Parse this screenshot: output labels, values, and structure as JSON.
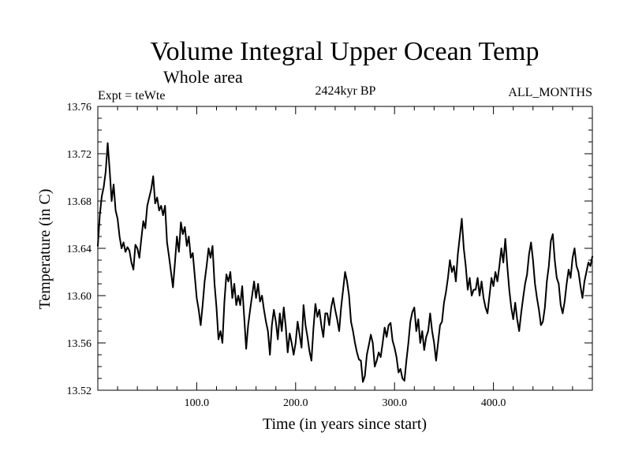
{
  "chart_data": {
    "type": "line",
    "title": "Volume Integral Upper Ocean Temp",
    "subtitle": "Whole area",
    "expt_label": "Expt = teWte",
    "period_label": "2424kyr BP",
    "months_label": "ALL_MONTHS",
    "xlabel": "Time (in years since start)",
    "ylabel": "Temperature (in C)",
    "xlim": [
      0,
      500
    ],
    "ylim": [
      13.52,
      13.76
    ],
    "xticks": [
      100,
      200,
      300,
      400
    ],
    "xtick_labels": [
      "100.0",
      "200.0",
      "300.0",
      "400.0"
    ],
    "yticks": [
      13.52,
      13.56,
      13.6,
      13.64,
      13.68,
      13.72,
      13.76
    ],
    "ytick_labels": [
      "13.52",
      "13.56",
      "13.60",
      "13.64",
      "13.68",
      "13.72",
      "13.76"
    ],
    "line_color": "#000000",
    "series": [
      {
        "name": "Temperature",
        "points": [
          [
            0,
            13.642
          ],
          [
            2,
            13.668
          ],
          [
            4,
            13.684
          ],
          [
            6,
            13.692
          ],
          [
            8,
            13.705
          ],
          [
            10,
            13.729
          ],
          [
            12,
            13.706
          ],
          [
            14,
            13.68
          ],
          [
            16,
            13.694
          ],
          [
            18,
            13.672
          ],
          [
            20,
            13.665
          ],
          [
            22,
            13.65
          ],
          [
            24,
            13.64
          ],
          [
            26,
            13.645
          ],
          [
            28,
            13.637
          ],
          [
            30,
            13.641
          ],
          [
            32,
            13.638
          ],
          [
            34,
            13.628
          ],
          [
            36,
            13.622
          ],
          [
            38,
            13.643
          ],
          [
            40,
            13.64
          ],
          [
            42,
            13.632
          ],
          [
            44,
            13.648
          ],
          [
            46,
            13.663
          ],
          [
            48,
            13.657
          ],
          [
            50,
            13.676
          ],
          [
            52,
            13.683
          ],
          [
            54,
            13.69
          ],
          [
            56,
            13.701
          ],
          [
            58,
            13.678
          ],
          [
            60,
            13.683
          ],
          [
            62,
            13.672
          ],
          [
            64,
            13.676
          ],
          [
            66,
            13.668
          ],
          [
            68,
            13.676
          ],
          [
            70,
            13.645
          ],
          [
            72,
            13.633
          ],
          [
            74,
            13.62
          ],
          [
            76,
            13.607
          ],
          [
            78,
            13.628
          ],
          [
            80,
            13.65
          ],
          [
            82,
            13.637
          ],
          [
            84,
            13.662
          ],
          [
            86,
            13.652
          ],
          [
            88,
            13.658
          ],
          [
            90,
            13.642
          ],
          [
            92,
            13.65
          ],
          [
            94,
            13.632
          ],
          [
            96,
            13.636
          ],
          [
            98,
            13.617
          ],
          [
            100,
            13.598
          ],
          [
            102,
            13.588
          ],
          [
            104,
            13.575
          ],
          [
            106,
            13.592
          ],
          [
            108,
            13.612
          ],
          [
            110,
            13.625
          ],
          [
            112,
            13.64
          ],
          [
            114,
            13.632
          ],
          [
            116,
            13.642
          ],
          [
            118,
            13.61
          ],
          [
            120,
            13.59
          ],
          [
            122,
            13.563
          ],
          [
            124,
            13.57
          ],
          [
            126,
            13.56
          ],
          [
            128,
            13.595
          ],
          [
            130,
            13.618
          ],
          [
            132,
            13.612
          ],
          [
            134,
            13.62
          ],
          [
            136,
            13.598
          ],
          [
            138,
            13.61
          ],
          [
            140,
            13.592
          ],
          [
            142,
            13.6
          ],
          [
            144,
            13.592
          ],
          [
            146,
            13.608
          ],
          [
            148,
            13.582
          ],
          [
            150,
            13.555
          ],
          [
            152,
            13.575
          ],
          [
            154,
            13.588
          ],
          [
            156,
            13.6
          ],
          [
            158,
            13.612
          ],
          [
            160,
            13.598
          ],
          [
            162,
            13.61
          ],
          [
            164,
            13.595
          ],
          [
            166,
            13.6
          ],
          [
            168,
            13.588
          ],
          [
            170,
            13.578
          ],
          [
            172,
            13.57
          ],
          [
            174,
            13.55
          ],
          [
            176,
            13.575
          ],
          [
            178,
            13.588
          ],
          [
            180,
            13.578
          ],
          [
            182,
            13.563
          ],
          [
            184,
            13.585
          ],
          [
            186,
            13.57
          ],
          [
            188,
            13.59
          ],
          [
            190,
            13.574
          ],
          [
            192,
            13.552
          ],
          [
            194,
            13.568
          ],
          [
            196,
            13.56
          ],
          [
            198,
            13.55
          ],
          [
            200,
            13.56
          ],
          [
            202,
            13.578
          ],
          [
            204,
            13.567
          ],
          [
            206,
            13.556
          ],
          [
            208,
            13.592
          ],
          [
            210,
            13.575
          ],
          [
            212,
            13.565
          ],
          [
            214,
            13.553
          ],
          [
            216,
            13.545
          ],
          [
            218,
            13.572
          ],
          [
            220,
            13.593
          ],
          [
            222,
            13.582
          ],
          [
            224,
            13.588
          ],
          [
            226,
            13.575
          ],
          [
            228,
            13.565
          ],
          [
            230,
            13.585
          ],
          [
            232,
            13.585
          ],
          [
            234,
            13.575
          ],
          [
            236,
            13.59
          ],
          [
            238,
            13.598
          ],
          [
            240,
            13.588
          ],
          [
            242,
            13.58
          ],
          [
            244,
            13.57
          ],
          [
            246,
            13.59
          ],
          [
            248,
            13.605
          ],
          [
            250,
            13.62
          ],
          [
            252,
            13.612
          ],
          [
            254,
            13.6
          ],
          [
            256,
            13.578
          ],
          [
            258,
            13.57
          ],
          [
            260,
            13.56
          ],
          [
            262,
            13.552
          ],
          [
            264,
            13.546
          ],
          [
            266,
            13.545
          ],
          [
            268,
            13.527
          ],
          [
            270,
            13.532
          ],
          [
            272,
            13.55
          ],
          [
            274,
            13.558
          ],
          [
            276,
            13.567
          ],
          [
            278,
            13.56
          ],
          [
            280,
            13.54
          ],
          [
            282,
            13.545
          ],
          [
            284,
            13.552
          ],
          [
            286,
            13.548
          ],
          [
            288,
            13.56
          ],
          [
            290,
            13.573
          ],
          [
            292,
            13.565
          ],
          [
            294,
            13.575
          ],
          [
            296,
            13.577
          ],
          [
            298,
            13.562
          ],
          [
            300,
            13.556
          ],
          [
            302,
            13.548
          ],
          [
            304,
            13.535
          ],
          [
            306,
            13.538
          ],
          [
            308,
            13.53
          ],
          [
            310,
            13.528
          ],
          [
            312,
            13.545
          ],
          [
            314,
            13.56
          ],
          [
            316,
            13.578
          ],
          [
            318,
            13.586
          ],
          [
            320,
            13.59
          ],
          [
            322,
            13.57
          ],
          [
            324,
            13.58
          ],
          [
            326,
            13.56
          ],
          [
            328,
            13.57
          ],
          [
            330,
            13.554
          ],
          [
            332,
            13.565
          ],
          [
            334,
            13.57
          ],
          [
            336,
            13.585
          ],
          [
            338,
            13.57
          ],
          [
            340,
            13.56
          ],
          [
            342,
            13.545
          ],
          [
            344,
            13.56
          ],
          [
            346,
            13.575
          ],
          [
            348,
            13.578
          ],
          [
            350,
            13.594
          ],
          [
            352,
            13.603
          ],
          [
            354,
            13.615
          ],
          [
            356,
            13.63
          ],
          [
            358,
            13.62
          ],
          [
            360,
            13.625
          ],
          [
            362,
            13.612
          ],
          [
            364,
            13.635
          ],
          [
            366,
            13.65
          ],
          [
            368,
            13.665
          ],
          [
            370,
            13.64
          ],
          [
            372,
            13.625
          ],
          [
            374,
            13.605
          ],
          [
            376,
            13.615
          ],
          [
            378,
            13.6
          ],
          [
            380,
            13.605
          ],
          [
            382,
            13.605
          ],
          [
            384,
            13.615
          ],
          [
            386,
            13.6
          ],
          [
            388,
            13.612
          ],
          [
            390,
            13.598
          ],
          [
            392,
            13.59
          ],
          [
            394,
            13.585
          ],
          [
            396,
            13.6
          ],
          [
            398,
            13.615
          ],
          [
            400,
            13.608
          ],
          [
            402,
            13.62
          ],
          [
            404,
            13.612
          ],
          [
            406,
            13.625
          ],
          [
            408,
            13.64
          ],
          [
            410,
            13.628
          ],
          [
            412,
            13.648
          ],
          [
            414,
            13.625
          ],
          [
            416,
            13.605
          ],
          [
            418,
            13.59
          ],
          [
            420,
            13.58
          ],
          [
            422,
            13.594
          ],
          [
            424,
            13.58
          ],
          [
            426,
            13.57
          ],
          [
            428,
            13.585
          ],
          [
            430,
            13.598
          ],
          [
            432,
            13.61
          ],
          [
            434,
            13.618
          ],
          [
            436,
            13.635
          ],
          [
            438,
            13.645
          ],
          [
            440,
            13.63
          ],
          [
            442,
            13.61
          ],
          [
            444,
            13.598
          ],
          [
            446,
            13.588
          ],
          [
            448,
            13.575
          ],
          [
            450,
            13.578
          ],
          [
            452,
            13.59
          ],
          [
            454,
            13.612
          ],
          [
            456,
            13.625
          ],
          [
            458,
            13.646
          ],
          [
            460,
            13.652
          ],
          [
            462,
            13.63
          ],
          [
            464,
            13.615
          ],
          [
            466,
            13.61
          ],
          [
            468,
            13.592
          ],
          [
            470,
            13.585
          ],
          [
            472,
            13.595
          ],
          [
            474,
            13.61
          ],
          [
            476,
            13.622
          ],
          [
            478,
            13.615
          ],
          [
            480,
            13.632
          ],
          [
            482,
            13.64
          ],
          [
            484,
            13.625
          ],
          [
            486,
            13.62
          ],
          [
            488,
            13.608
          ],
          [
            490,
            13.598
          ],
          [
            492,
            13.612
          ],
          [
            494,
            13.62
          ],
          [
            496,
            13.628
          ],
          [
            498,
            13.625
          ],
          [
            500,
            13.633
          ]
        ]
      }
    ]
  }
}
